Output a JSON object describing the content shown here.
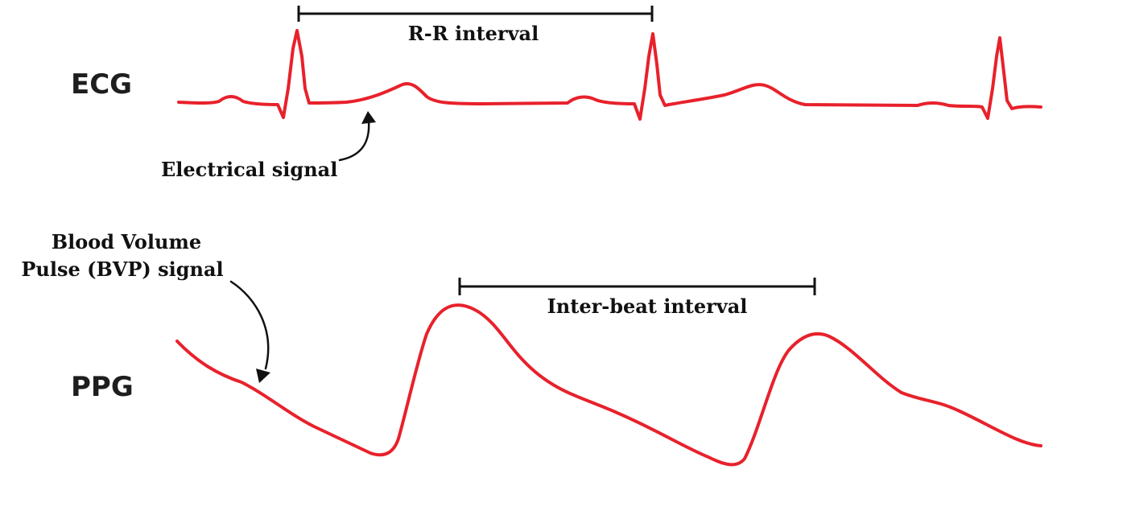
{
  "colors": {
    "signal": "#e8212b",
    "ink": "#111111"
  },
  "ecg": {
    "label": "ECG",
    "interval_label": "R-R interval",
    "annotation": "Electrical signal"
  },
  "ppg": {
    "label": "PPG",
    "interval_label": "Inter-beat interval",
    "annotation_line1": "Blood Volume",
    "annotation_line2": "Pulse (BVP) signal"
  }
}
